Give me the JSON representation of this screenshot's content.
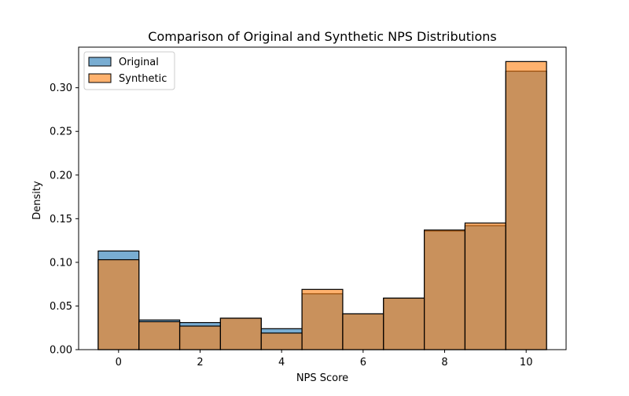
{
  "chart_data": {
    "type": "bar",
    "title": "Comparison of Original and Synthetic NPS Distributions",
    "xlabel": "NPS Score",
    "ylabel": "Density",
    "categories": [
      0,
      1,
      2,
      3,
      4,
      5,
      6,
      7,
      8,
      9,
      10
    ],
    "series": [
      {
        "name": "Original",
        "color": "#1f77b4",
        "alpha": 0.6,
        "values": [
          0.113,
          0.034,
          0.031,
          0.036,
          0.024,
          0.064,
          0.041,
          0.059,
          0.136,
          0.142,
          0.319
        ]
      },
      {
        "name": "Synthetic",
        "color": "#ff7f0e",
        "alpha": 0.6,
        "values": [
          0.103,
          0.032,
          0.027,
          0.036,
          0.019,
          0.069,
          0.041,
          0.059,
          0.137,
          0.145,
          0.33
        ]
      }
    ],
    "xlim": [
      -0.98,
      10.98
    ],
    "ylim": [
      0,
      0.3465
    ],
    "xticks": [
      0,
      2,
      4,
      6,
      8,
      10
    ],
    "xtick_labels": [
      "0",
      "2",
      "4",
      "6",
      "8",
      "10"
    ],
    "yticks": [
      0,
      0.05,
      0.1,
      0.15,
      0.2,
      0.25,
      0.3
    ],
    "ytick_labels": [
      "0.00",
      "0.05",
      "0.10",
      "0.15",
      "0.20",
      "0.25",
      "0.30"
    ],
    "grid": false,
    "legend_position": "top-left"
  }
}
